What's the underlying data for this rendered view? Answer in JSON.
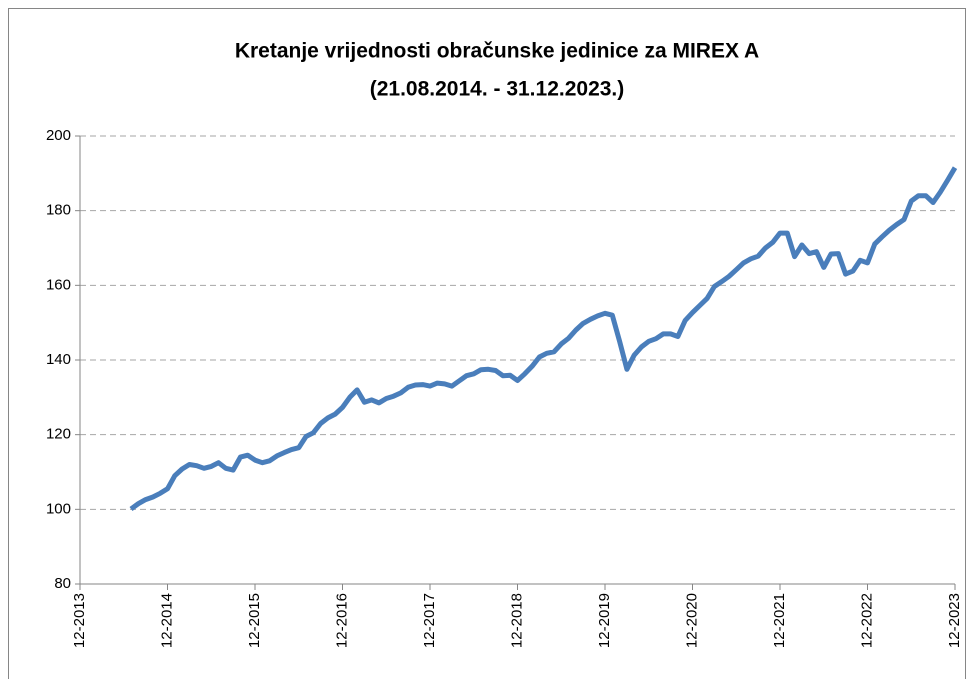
{
  "chart_data": {
    "type": "line",
    "title": "Kretanje vrijednosti obračunske jedinice za MIREX A",
    "subtitle": "(21.08.2014. - 31.12.2023.)",
    "x": [
      "07-2014",
      "08-2014",
      "09-2014",
      "10-2014",
      "11-2014",
      "12-2014",
      "01-2015",
      "02-2015",
      "03-2015",
      "04-2015",
      "05-2015",
      "06-2015",
      "07-2015",
      "08-2015",
      "09-2015",
      "10-2015",
      "11-2015",
      "12-2015",
      "01-2016",
      "02-2016",
      "03-2016",
      "04-2016",
      "05-2016",
      "06-2016",
      "07-2016",
      "08-2016",
      "09-2016",
      "10-2016",
      "11-2016",
      "12-2016",
      "01-2017",
      "02-2017",
      "03-2017",
      "04-2017",
      "05-2017",
      "06-2017",
      "07-2017",
      "08-2017",
      "09-2017",
      "10-2017",
      "11-2017",
      "12-2017",
      "01-2018",
      "02-2018",
      "03-2018",
      "04-2018",
      "05-2018",
      "06-2018",
      "07-2018",
      "08-2018",
      "09-2018",
      "10-2018",
      "11-2018",
      "12-2018",
      "01-2019",
      "02-2019",
      "03-2019",
      "04-2019",
      "05-2019",
      "06-2019",
      "07-2019",
      "08-2019",
      "09-2019",
      "10-2019",
      "11-2019",
      "12-2019",
      "01-2020",
      "02-2020",
      "03-2020",
      "04-2020",
      "05-2020",
      "06-2020",
      "07-2020",
      "08-2020",
      "09-2020",
      "10-2020",
      "11-2020",
      "12-2020",
      "01-2021",
      "02-2021",
      "03-2021",
      "04-2021",
      "05-2021",
      "06-2021",
      "07-2021",
      "08-2021",
      "09-2021",
      "10-2021",
      "11-2021",
      "12-2021",
      "01-2022",
      "02-2022",
      "03-2022",
      "04-2022",
      "05-2022",
      "06-2022",
      "07-2022",
      "08-2022",
      "09-2022",
      "10-2022",
      "11-2022",
      "12-2022",
      "01-2023",
      "02-2023",
      "03-2023",
      "04-2023",
      "05-2023",
      "06-2023",
      "07-2023",
      "08-2023",
      "09-2023",
      "10-2023",
      "11-2023",
      "12-2023"
    ],
    "series": [
      {
        "name": "MIREX A",
        "color": "#4a7ebb",
        "values": [
          100.1,
          101.5,
          102.6,
          103.3,
          104.3,
          105.5,
          109,
          110.8,
          112,
          111.7,
          111,
          111.5,
          112.5,
          111,
          110.5,
          114,
          114.5,
          113.2,
          112.5,
          113,
          114.3,
          115.2,
          116,
          116.5,
          119.5,
          120.5,
          123,
          124.5,
          125.5,
          127.3,
          130,
          132,
          128.7,
          129.3,
          128.5,
          129.7,
          130.3,
          131.2,
          132.7,
          133.3,
          133.4,
          133,
          133.8,
          133.6,
          133,
          134.4,
          135.8,
          136.3,
          137.4,
          137.5,
          137.2,
          135.8,
          135.9,
          134.5,
          136.3,
          138.3,
          140.8,
          141.8,
          142.2,
          144.3,
          145.8,
          148,
          149.8,
          150.9,
          151.8,
          152.5,
          152,
          145,
          137.5,
          141.3,
          143.5,
          145,
          145.7,
          147,
          147,
          146.3,
          150.6,
          152.7,
          154.6,
          156.5,
          159.7,
          161,
          162.4,
          164.2,
          166,
          167.1,
          167.8,
          170,
          171.5,
          174,
          174,
          167.7,
          170.8,
          168.5,
          169,
          164.8,
          168.4,
          168.5,
          163,
          163.8,
          166.7,
          166,
          171.1,
          173,
          174.8,
          176.3,
          177.6,
          182.6,
          184,
          184,
          182.2,
          185,
          188.2,
          191.5
        ]
      }
    ],
    "xticks": [
      "12-2013",
      "12-2014",
      "12-2015",
      "12-2016",
      "12-2017",
      "12-2018",
      "12-2019",
      "12-2020",
      "12-2021",
      "12-2022",
      "12-2023"
    ],
    "ylim": [
      80,
      200
    ],
    "yticks": [
      80,
      100,
      120,
      140,
      160,
      180,
      200
    ],
    "grid": true
  }
}
